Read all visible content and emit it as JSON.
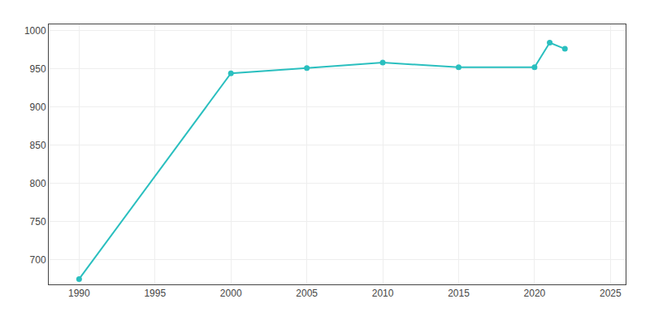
{
  "chart_data": {
    "type": "line",
    "x": [
      1990,
      2000,
      2005,
      2010,
      2015,
      2020,
      2021,
      2022
    ],
    "values": [
      675,
      944,
      951,
      958,
      952,
      952,
      984,
      976
    ],
    "color": "#2abfbf",
    "marker": "circle",
    "xlim": [
      1988,
      2026
    ],
    "xticks": [
      1990,
      1995,
      2000,
      2005,
      2010,
      2015,
      2020,
      2025
    ],
    "ylim": [
      668,
      1008
    ],
    "yticks": [
      700,
      750,
      800,
      850,
      900,
      950,
      1000
    ],
    "grid": true
  }
}
